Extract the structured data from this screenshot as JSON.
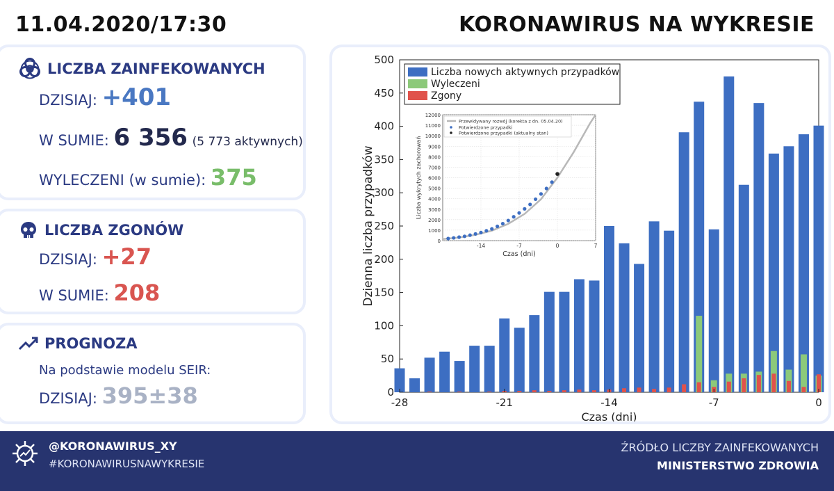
{
  "header": {
    "date": "11.04.2020/17:30",
    "title": "KORONAWIRUS NA WYKRESIE"
  },
  "infected": {
    "title": "LICZBA ZAINFEKOWANYCH",
    "today_label": "DZISIAJ:",
    "today_value": "+401",
    "total_label": "W SUMIE:",
    "total_value": "6 356",
    "total_active": "(5 773 aktywnych)",
    "recovered_label": "WYLECZENI (w sumie):",
    "recovered_value": "375"
  },
  "deaths": {
    "title": "LICZBA ZGONÓW",
    "today_label": "DZISIAJ:",
    "today_value": "+27",
    "total_label": "W SUMIE:",
    "total_value": "208"
  },
  "forecast": {
    "title": "PROGNOZA",
    "model_text": "Na podstawie modelu SEIR:",
    "today_label": "DZISIAJ:",
    "today_value": "395±38"
  },
  "footer": {
    "handle": "@KORONAWIRUS_XY",
    "hashtag": "#KORONAWIRUSNAWYKRESIE",
    "source_line1": "ŹRÓDŁO LICZBY ZAINFEKOWANYCH",
    "source_line2": "MINISTERSTWO ZDROWIA"
  },
  "colors": {
    "blue": "#3d6ec2",
    "green": "#8cc97a",
    "red": "#e0524b",
    "navy": "#27346f"
  },
  "icons": [
    "biohazard-icon",
    "skull-icon",
    "trend-up-icon",
    "virus-logo-icon"
  ],
  "chart_data": [
    {
      "type": "bar",
      "xlabel": "Czas (dni)",
      "ylabel": "Dzienna liczba przypadków",
      "xlim": [
        -28,
        0
      ],
      "ylim": [
        0,
        500
      ],
      "xticks": [
        -28,
        -21,
        -14,
        -7,
        0
      ],
      "yticks": [
        0,
        50,
        100,
        150,
        200,
        250,
        300,
        350,
        400,
        450,
        500
      ],
      "grid": false,
      "legend_position": "top-left",
      "x": [
        -28,
        -27,
        -26,
        -25,
        -24,
        -23,
        -22,
        -21,
        -20,
        -19,
        -18,
        -17,
        -16,
        -15,
        -14,
        -13,
        -12,
        -11,
        -10,
        -9,
        -8,
        -7,
        -6,
        -5,
        -4,
        -3,
        -2,
        -1,
        0
      ],
      "series": [
        {
          "name": "Liczba nowych aktywnych przypadków",
          "color": "#3d6ec2",
          "values": [
            36,
            21,
            52,
            61,
            47,
            70,
            70,
            111,
            97,
            116,
            151,
            151,
            170,
            168,
            250,
            224,
            193,
            257,
            243,
            391,
            437,
            245,
            475,
            312,
            435,
            359,
            370,
            388,
            401
          ]
        },
        {
          "name": "Wyleczeni",
          "color": "#8cc97a",
          "values": [
            0,
            0,
            0,
            0,
            0,
            0,
            0,
            0,
            0,
            0,
            0,
            0,
            0,
            0,
            0,
            0,
            0,
            0,
            0,
            0,
            115,
            18,
            28,
            28,
            31,
            62,
            34,
            57,
            25
          ]
        },
        {
          "name": "Zgony",
          "color": "#e0524b",
          "values": [
            0,
            0,
            1,
            0,
            1,
            0,
            1,
            2,
            2,
            3,
            2,
            3,
            4,
            3,
            4,
            6,
            7,
            5,
            7,
            12,
            15,
            8,
            16,
            21,
            26,
            28,
            17,
            8,
            27
          ]
        }
      ]
    },
    {
      "type": "scatter",
      "xlabel": "Czas (dni)",
      "ylabel": "Liczba wykrytych zachorowań",
      "xlim": [
        -21,
        7
      ],
      "ylim": [
        0,
        12000
      ],
      "xticks": [
        -14,
        -7,
        0,
        7
      ],
      "yticks": [
        0,
        1000,
        2000,
        3000,
        4000,
        5000,
        6000,
        7000,
        8000,
        9000,
        10000,
        11000,
        12000
      ],
      "grid": true,
      "legend_position": "top-left",
      "series": [
        {
          "name": "Przewidywany rozwój (korekta z dn. 05.04.20)",
          "color": "#b8b8b8",
          "x": [
            -21,
            -18,
            -15,
            -12,
            -9,
            -6,
            -3,
            0,
            3,
            6,
            7
          ],
          "values": [
            150,
            300,
            550,
            950,
            1600,
            2550,
            3950,
            6000,
            8450,
            11200,
            12000
          ]
        },
        {
          "name": "Potwierdzone przypadki",
          "color": "#3d6ec2",
          "x": [
            -20,
            -19,
            -18,
            -17,
            -16,
            -15,
            -14,
            -13,
            -12,
            -11,
            -10,
            -9,
            -8,
            -7,
            -6,
            -5,
            -4,
            -3,
            -2,
            -1
          ],
          "values": [
            200,
            260,
            330,
            410,
            520,
            640,
            770,
            940,
            1120,
            1360,
            1620,
            1920,
            2270,
            2640,
            3030,
            3450,
            3950,
            4450,
            4970,
            5575
          ]
        },
        {
          "name": "Potwierdzone przypadki (aktualny stan)",
          "color": "#222222",
          "x": [
            0
          ],
          "values": [
            6356
          ]
        }
      ]
    }
  ]
}
